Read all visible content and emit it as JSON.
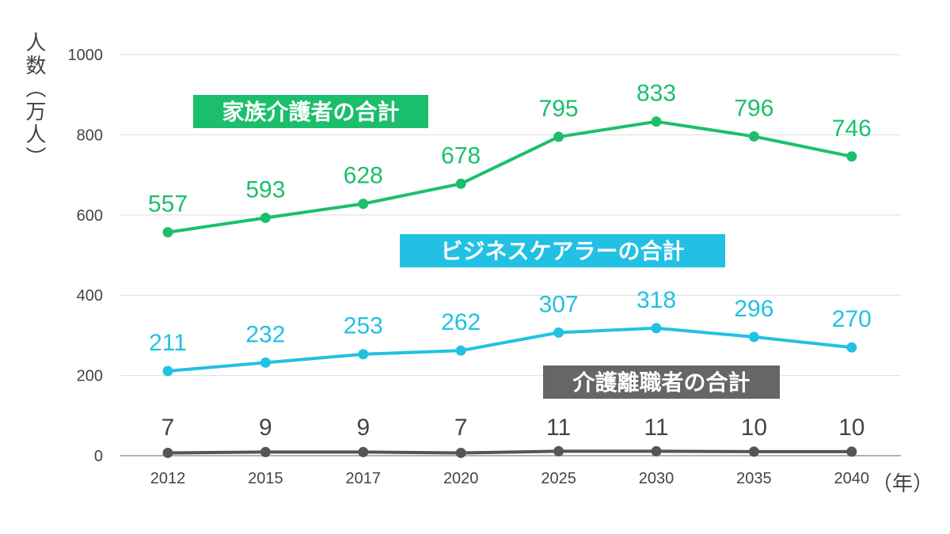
{
  "chart_data": {
    "type": "line",
    "title": "",
    "ylabel": "人数（万人）",
    "xlabel": "（年）",
    "categories": [
      "2012",
      "2015",
      "2017",
      "2020",
      "2025",
      "2030",
      "2035",
      "2040"
    ],
    "ylim": [
      0,
      1000
    ],
    "yticks": [
      0,
      200,
      400,
      600,
      800,
      1000
    ],
    "grid": true,
    "legend": "inline labels",
    "series": [
      {
        "name": "家族介護者の合計",
        "color": "#1bbf6b",
        "values": [
          557,
          593,
          628,
          678,
          795,
          833,
          796,
          746
        ]
      },
      {
        "name": "ビジネスケアラーの合計",
        "color": "#22c1e3",
        "values": [
          211,
          232,
          253,
          262,
          307,
          318,
          296,
          270
        ]
      },
      {
        "name": "介護離職者の合計",
        "color": "#555555",
        "label_color": "#444444",
        "box_color": "#666666",
        "values": [
          7,
          9,
          9,
          7,
          11,
          11,
          10,
          10
        ]
      }
    ]
  }
}
